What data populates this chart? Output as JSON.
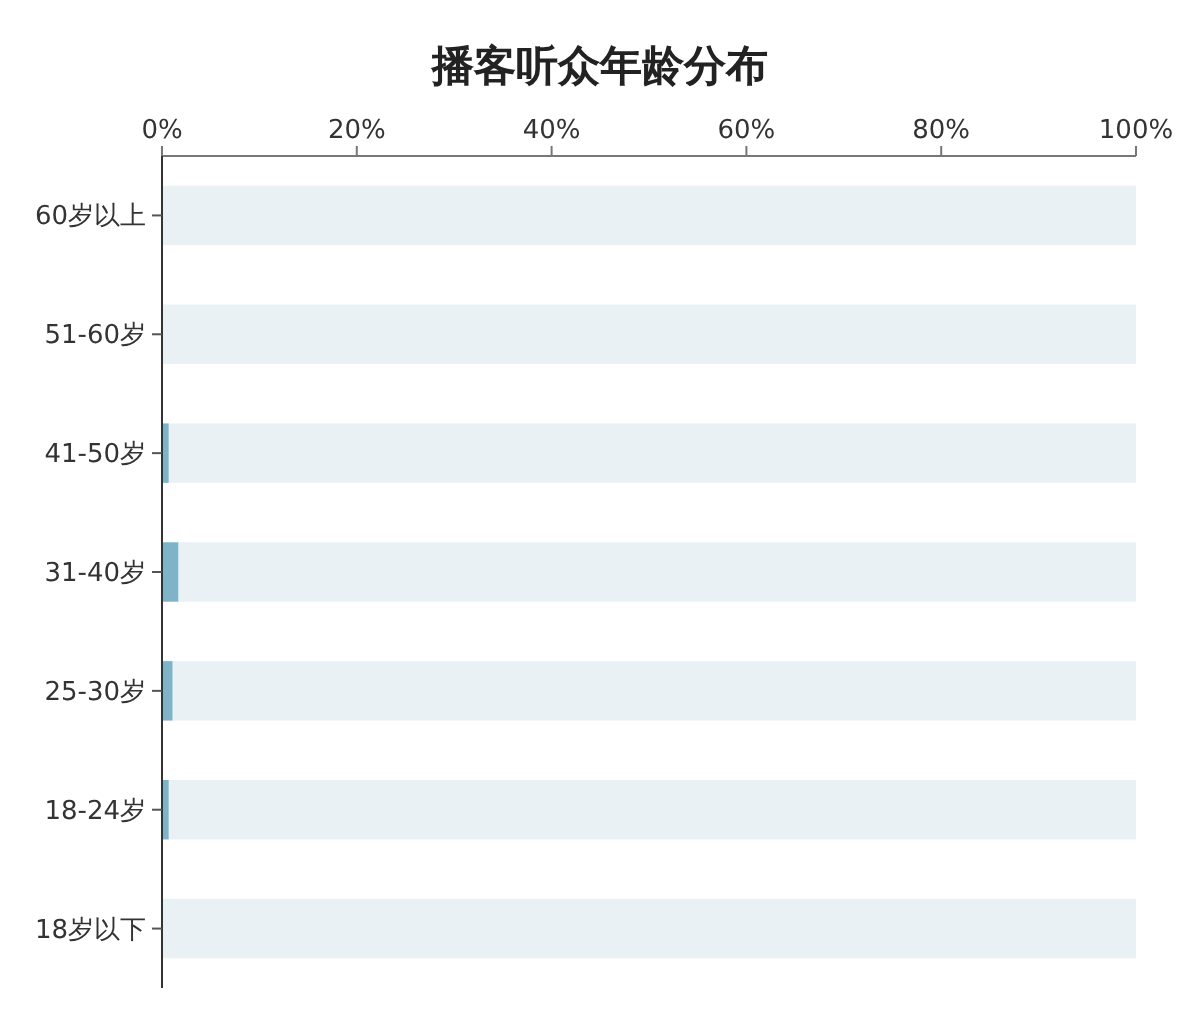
{
  "chart_data": {
    "type": "bar",
    "orientation": "horizontal",
    "title": "播客听众年龄分布",
    "categories": [
      "60岁以上",
      "51-60岁",
      "41-50岁",
      "31-40岁",
      "25-30岁",
      "18-24岁",
      "18岁以下"
    ],
    "series": [
      {
        "color": "#7fb3c8",
        "values": [
          0,
          0,
          0.7,
          1.7,
          1.1,
          0.7,
          0
        ]
      },
      {
        "color": "#e9f1f5",
        "values": [
          100,
          100,
          99.3,
          98.3,
          98.9,
          99.3,
          100
        ]
      }
    ],
    "stacked": true,
    "xlim": [
      0,
      100
    ],
    "xticks": [
      {
        "value": 0,
        "label": "0%"
      },
      {
        "value": 20,
        "label": "20%"
      },
      {
        "value": 40,
        "label": "40%"
      },
      {
        "value": 60,
        "label": "60%"
      },
      {
        "value": 80,
        "label": "80%"
      },
      {
        "value": 100,
        "label": "100%"
      }
    ],
    "grid": false
  }
}
